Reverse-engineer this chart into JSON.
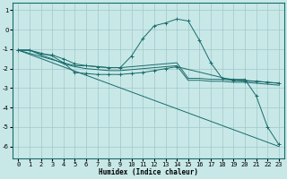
{
  "xlabel": "Humidex (Indice chaleur)",
  "bg_color": "#c8e8e8",
  "grid_color": "#a0c8c8",
  "line_color": "#1a6b6b",
  "ylim": [
    -6.6,
    1.4
  ],
  "xlim": [
    -0.5,
    23.5
  ],
  "yticks": [
    1,
    0,
    -1,
    -2,
    -3,
    -4,
    -5,
    -6
  ],
  "xticks": [
    0,
    1,
    2,
    3,
    4,
    5,
    6,
    7,
    8,
    9,
    10,
    11,
    12,
    13,
    14,
    15,
    16,
    17,
    18,
    19,
    20,
    21,
    22,
    23
  ],
  "line1": {
    "x": [
      0,
      1,
      2,
      3,
      4,
      5,
      6,
      7,
      8,
      9,
      10,
      11,
      12,
      13,
      14,
      15,
      16,
      17,
      18,
      19,
      20,
      21,
      22,
      23
    ],
    "y": [
      -1.05,
      -1.05,
      -1.25,
      -1.3,
      -1.5,
      -1.75,
      -1.85,
      -1.9,
      -1.95,
      -1.95,
      -1.35,
      -0.45,
      0.2,
      0.35,
      0.55,
      0.45,
      -0.55,
      -1.7,
      -2.5,
      -2.55,
      -2.55,
      -3.4,
      -5.0,
      -5.9
    ]
  },
  "line2": {
    "x": [
      0,
      1,
      2,
      3,
      4,
      5,
      6,
      7,
      8,
      9,
      10,
      11,
      12,
      13,
      14,
      15,
      16,
      17,
      18,
      19,
      20,
      21,
      22,
      23
    ],
    "y": [
      -1.05,
      -1.05,
      -1.2,
      -1.35,
      -1.7,
      -1.85,
      -1.85,
      -1.9,
      -1.95,
      -1.95,
      -1.9,
      -1.85,
      -1.8,
      -1.75,
      -1.7,
      -2.5,
      -2.5,
      -2.55,
      -2.55,
      -2.6,
      -2.6,
      -2.65,
      -2.7,
      -2.75
    ]
  },
  "line3": {
    "x": [
      0,
      1,
      2,
      3,
      4,
      5,
      6,
      7,
      8,
      9,
      10,
      11,
      12,
      13,
      14,
      15,
      16,
      17,
      18,
      19,
      20,
      21,
      22,
      23
    ],
    "y": [
      -1.05,
      -1.05,
      -1.3,
      -1.5,
      -1.75,
      -1.9,
      -2.0,
      -2.05,
      -2.1,
      -2.1,
      -2.05,
      -2.0,
      -1.95,
      -1.9,
      -1.85,
      -2.6,
      -2.6,
      -2.65,
      -2.65,
      -2.7,
      -2.7,
      -2.75,
      -2.8,
      -2.85
    ]
  },
  "line4": {
    "x": [
      0,
      4,
      5,
      6,
      7,
      8,
      9,
      10,
      11,
      12,
      13,
      14,
      19,
      20,
      21,
      22,
      23
    ],
    "y": [
      -1.05,
      -1.7,
      -2.2,
      -2.25,
      -2.3,
      -2.3,
      -2.3,
      -2.25,
      -2.2,
      -2.1,
      -2.0,
      -1.9,
      -2.6,
      -2.65,
      -2.65,
      -2.7,
      -2.75
    ]
  },
  "line5": {
    "x": [
      0,
      23
    ],
    "y": [
      -1.05,
      -6.0
    ]
  }
}
